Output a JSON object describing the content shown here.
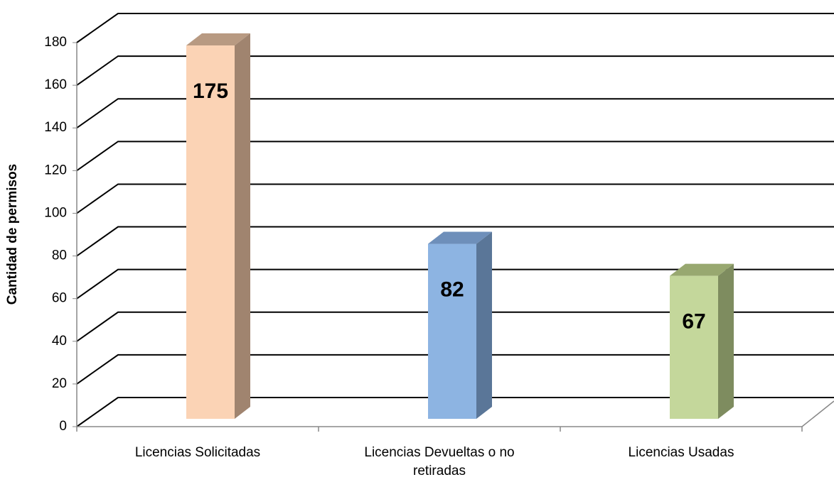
{
  "chart_data": {
    "type": "bar3d",
    "y_label": "Cantidad de permisos",
    "categories": [
      "Licencias Solicitadas",
      "Licencias Devueltas o no retiradas",
      "Licencias Usadas"
    ],
    "values": [
      175,
      82,
      67
    ],
    "colors": [
      {
        "front": "#fbd3b5",
        "side": "#a0846f",
        "top": "#b89a82"
      },
      {
        "front": "#8db4e2",
        "side": "#5a7698",
        "top": "#6e8fba"
      },
      {
        "front": "#c4d79b",
        "side": "#7e8c5f",
        "top": "#98a870"
      }
    ],
    "ylim": [
      0,
      180
    ],
    "yticks": [
      0,
      20,
      40,
      60,
      80,
      100,
      120,
      140,
      160,
      180
    ],
    "grid": true
  }
}
